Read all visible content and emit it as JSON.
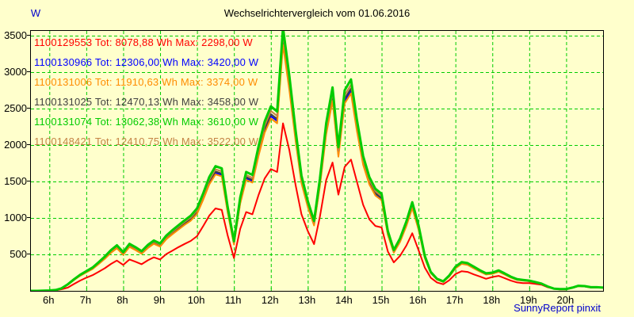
{
  "header": {
    "title": "Wechselrichtervergleich vom 01.06.2016"
  },
  "footer": {
    "credit": "SunnyReport pinxit"
  },
  "colors": {
    "background": "#ffffcc",
    "grid": "#00cc00",
    "axis_border": "#000000",
    "axis_text": "#000000",
    "unit_text": "#0000cc",
    "credit_text": "#0000cc"
  },
  "chart_data": {
    "type": "line",
    "title": "Wechselrichtervergleich vom 01.06.2016",
    "xlabel": "",
    "ylabel": "W",
    "xlim": [
      5.5,
      21
    ],
    "ylim": [
      0,
      3565
    ],
    "y_ticks": [
      500,
      1000,
      1500,
      2000,
      2500,
      3000,
      3500
    ],
    "x_ticks": [
      {
        "value": 6,
        "label": "6h"
      },
      {
        "value": 7,
        "label": "7h"
      },
      {
        "value": 8,
        "label": "8h"
      },
      {
        "value": 9,
        "label": "9h"
      },
      {
        "value": 10,
        "label": "10h"
      },
      {
        "value": 11,
        "label": "11h"
      },
      {
        "value": 12,
        "label": "12h"
      },
      {
        "value": 13,
        "label": "13h"
      },
      {
        "value": 14,
        "label": "14h"
      },
      {
        "value": 15,
        "label": "15h"
      },
      {
        "value": 16,
        "label": "16h"
      },
      {
        "value": 17,
        "label": "17h"
      },
      {
        "value": 18,
        "label": "18h"
      },
      {
        "value": 19,
        "label": "19h"
      },
      {
        "value": 20,
        "label": "20h"
      }
    ],
    "grid": {
      "on": true,
      "style": "dashed",
      "color": "#00cc00"
    },
    "legend_position": "top-left",
    "x_unit": "hour of day",
    "x": [
      5.5,
      5.67,
      5.83,
      6,
      6.17,
      6.33,
      6.5,
      6.67,
      6.83,
      7,
      7.17,
      7.33,
      7.5,
      7.67,
      7.83,
      8,
      8.17,
      8.33,
      8.5,
      8.67,
      8.83,
      9,
      9.17,
      9.33,
      9.5,
      9.67,
      9.83,
      10,
      10.17,
      10.33,
      10.5,
      10.67,
      10.83,
      11,
      11.17,
      11.33,
      11.5,
      11.67,
      11.83,
      12,
      12.17,
      12.33,
      12.5,
      12.67,
      12.83,
      13,
      13.17,
      13.33,
      13.5,
      13.67,
      13.83,
      14,
      14.17,
      14.33,
      14.5,
      14.67,
      14.83,
      15,
      15.17,
      15.33,
      15.5,
      15.67,
      15.83,
      16,
      16.17,
      16.33,
      16.5,
      16.67,
      16.83,
      17,
      17.17,
      17.33,
      17.5,
      17.67,
      17.83,
      18,
      18.17,
      18.33,
      18.5,
      18.67,
      18.83,
      19,
      19.17,
      19.33,
      19.5,
      19.67,
      19.83,
      20,
      20.17,
      20.33,
      20.5,
      20.67,
      20.83,
      21
    ],
    "draw_order": [
      1,
      3,
      2,
      0,
      5,
      4
    ],
    "series": [
      {
        "id": "1100129553",
        "label": "1100129553 Tot: 8078,88 Wh Max: 2298,00 W",
        "tot_wh": "8078,88",
        "max_w": "2298,00",
        "color": "#ff0000",
        "line_width": 2,
        "values": [
          0,
          0,
          1,
          3,
          8,
          22,
          45,
          95,
          140,
          180,
          215,
          260,
          310,
          370,
          415,
          355,
          430,
          400,
          365,
          420,
          460,
          430,
          505,
          550,
          600,
          645,
          685,
          750,
          890,
          1030,
          1130,
          1110,
          760,
          450,
          850,
          1080,
          1050,
          1320,
          1540,
          1670,
          1630,
          2298,
          1930,
          1450,
          1050,
          820,
          640,
          1020,
          1520,
          1760,
          1320,
          1700,
          1800,
          1500,
          1180,
          980,
          890,
          870,
          540,
          390,
          480,
          620,
          790,
          560,
          320,
          180,
          115,
          90,
          145,
          230,
          270,
          260,
          225,
          195,
          165,
          190,
          205,
          175,
          140,
          115,
          105,
          105,
          95,
          85,
          50,
          28,
          20,
          20,
          40,
          65,
          60,
          45,
          48,
          42
        ]
      },
      {
        "id": "1100130966",
        "label": "1100130966 Tot: 12306,00 Wh Max: 3420,00 W",
        "tot_wh": "12306,00",
        "max_w": "3420,00",
        "color": "#0000ff",
        "line_width": 2,
        "values": [
          0,
          0,
          2,
          5,
          11,
          33,
          85,
          152,
          208,
          256,
          303,
          369,
          445,
          530,
          592,
          502,
          611,
          568,
          516,
          597,
          653,
          616,
          720,
          786,
          852,
          919,
          975,
          1070,
          1269,
          1477,
          1619,
          1591,
          1089,
          644,
          1212,
          1544,
          1506,
          1884,
          2197,
          2396,
          2330,
          3420,
          2794,
          2083,
          1496,
          1165,
          909,
          1458,
          2178,
          2642,
          1866,
          2604,
          2746,
          2225,
          1752,
          1477,
          1326,
          1259,
          777,
          530,
          682,
          900,
          1151,
          852,
          455,
          246,
          156,
          123,
          199,
          313,
          374,
          360,
          313,
          265,
          227,
          237,
          265,
          227,
          185,
          152,
          142,
          133,
          114,
          95,
          57,
          28,
          24,
          24,
          43,
          66,
          62,
          47,
          47,
          43
        ]
      },
      {
        "id": "1100131006",
        "label": "1100131006 Tot: 11910,63 Wh Max: 3374,00 W",
        "tot_wh": "11910,63",
        "max_w": "3374,00",
        "color": "#ff8c00",
        "line_width": 2,
        "values": [
          0,
          0,
          2,
          5,
          11,
          33,
          84,
          149,
          205,
          252,
          299,
          364,
          439,
          523,
          584,
          495,
          602,
          560,
          509,
          588,
          644,
          607,
          710,
          775,
          841,
          906,
          962,
          1055,
          1252,
          1457,
          1597,
          1569,
          1074,
          635,
          1196,
          1522,
          1485,
          1859,
          2167,
          2363,
          2298,
          3374,
          2755,
          2055,
          1476,
          1149,
          897,
          1438,
          2148,
          2606,
          1840,
          2569,
          2709,
          2195,
          1728,
          1457,
          1308,
          1242,
          766,
          523,
          672,
          887,
          1135,
          841,
          448,
          243,
          154,
          121,
          196,
          308,
          369,
          355,
          308,
          262,
          224,
          234,
          262,
          224,
          182,
          149,
          140,
          131,
          112,
          93,
          56,
          28,
          23,
          23,
          42,
          65,
          61,
          47,
          47,
          42
        ]
      },
      {
        "id": "1100131025",
        "label": "1100131025 Tot: 12470,13 Wh Max: 3458,00 W",
        "tot_wh": "12470,13",
        "max_w": "3458,00",
        "color": "#404040",
        "line_width": 2,
        "values": [
          0,
          0,
          2,
          5,
          11,
          34,
          86,
          153,
          211,
          259,
          307,
          374,
          450,
          536,
          599,
          508,
          618,
          575,
          522,
          604,
          661,
          623,
          728,
          795,
          862,
          929,
          987,
          1083,
          1284,
          1494,
          1638,
          1609,
          1102,
          651,
          1226,
          1562,
          1523,
          1906,
          2223,
          2424,
          2357,
          3458,
          2826,
          2108,
          1514,
          1178,
          920,
          1475,
          2203,
          2673,
          1887,
          2634,
          2778,
          2251,
          1772,
          1494,
          1341,
          1274,
          786,
          536,
          690,
          910,
          1164,
          862,
          460,
          249,
          158,
          125,
          201,
          316,
          378,
          364,
          316,
          268,
          230,
          240,
          268,
          230,
          187,
          153,
          144,
          134,
          115,
          96,
          57,
          29,
          24,
          24,
          43,
          67,
          62,
          48,
          48,
          43
        ]
      },
      {
        "id": "1100131074",
        "label": "1100131074 Tot: 13062,38 Wh Max: 3610,00 W",
        "tot_wh": "13062,38",
        "max_w": "3610,00",
        "color": "#00cc00",
        "line_width": 3,
        "values": [
          0,
          0,
          2,
          5,
          12,
          35,
          90,
          160,
          220,
          270,
          320,
          390,
          470,
          560,
          625,
          530,
          645,
          600,
          545,
          630,
          690,
          650,
          760,
          830,
          900,
          970,
          1030,
          1130,
          1340,
          1560,
          1710,
          1680,
          1150,
          680,
          1280,
          1630,
          1590,
          1990,
          2320,
          2530,
          2460,
          3610,
          2950,
          2200,
          1580,
          1230,
          960,
          1540,
          2300,
          2790,
          1970,
          2750,
          2900,
          2350,
          1850,
          1560,
          1400,
          1330,
          820,
          560,
          720,
          950,
          1215,
          900,
          480,
          260,
          165,
          130,
          210,
          330,
          395,
          380,
          330,
          280,
          240,
          250,
          280,
          240,
          195,
          160,
          150,
          140,
          120,
          100,
          60,
          30,
          25,
          25,
          45,
          70,
          65,
          50,
          50,
          45
        ]
      },
      {
        "id": "1100148421",
        "label": "1100148421 Tot: 12410,75 Wh Max: 3522,00 W",
        "tot_wh": "12410,75",
        "max_w": "3522,00",
        "color": "#c48445",
        "line_width": 2,
        "values": [
          0,
          0,
          2,
          5,
          12,
          34,
          88,
          156,
          215,
          263,
          312,
          380,
          458,
          546,
          609,
          517,
          629,
          585,
          531,
          614,
          673,
          634,
          741,
          809,
          878,
          946,
          1004,
          1102,
          1307,
          1521,
          1667,
          1638,
          1121,
          663,
          1248,
          1589,
          1550,
          1940,
          2262,
          2467,
          2399,
          3522,
          2876,
          2145,
          1541,
          1199,
          936,
          1502,
          2243,
          2720,
          1921,
          2681,
          2828,
          2291,
          1804,
          1521,
          1365,
          1297,
          800,
          546,
          702,
          926,
          1185,
          878,
          468,
          254,
          161,
          127,
          205,
          322,
          385,
          371,
          322,
          273,
          234,
          244,
          273,
          234,
          190,
          156,
          146,
          137,
          117,
          98,
          59,
          29,
          24,
          24,
          44,
          68,
          63,
          49,
          49,
          44
        ]
      }
    ]
  }
}
